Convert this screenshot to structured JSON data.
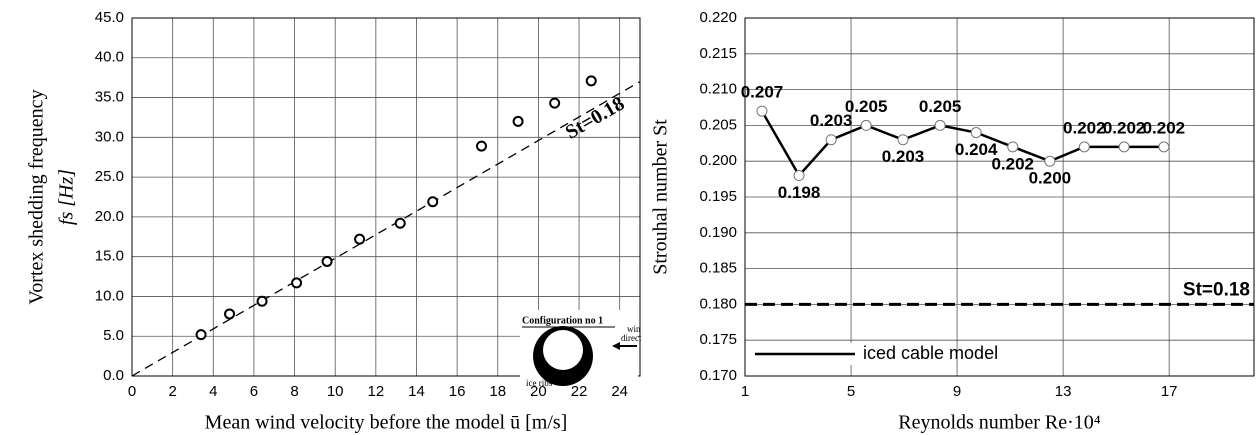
{
  "chart_data": [
    {
      "type": "scatter",
      "x_label": "Mean wind velocity before the model ū  [m/s]",
      "y_label": "Vortex shedding frequency",
      "y_label_2": "fs  [Hz]",
      "x": [
        3.4,
        4.8,
        6.4,
        8.1,
        9.6,
        11.2,
        13.2,
        14.8,
        17.2,
        19.0,
        20.8,
        22.6
      ],
      "values": [
        5.2,
        7.8,
        9.4,
        11.7,
        14.4,
        17.2,
        19.2,
        21.9,
        28.9,
        32.0,
        34.3,
        37.1
      ],
      "color": "#000000",
      "ref_line": {
        "label": "St=0.18",
        "x": [
          0,
          25
        ],
        "y": [
          0,
          37
        ]
      },
      "inset": {
        "title": "Configuration no 1",
        "wind": [
          "win",
          "direct"
        ],
        "ribs": "ice ribs"
      },
      "xlim": [
        0,
        25
      ],
      "xticks": [
        0,
        2,
        4,
        6,
        8,
        10,
        12,
        14,
        16,
        18,
        20,
        22,
        24
      ],
      "ylim": [
        0,
        45
      ],
      "yticks": [
        {
          "value": 0,
          "label": "0.0"
        },
        {
          "value": 5,
          "label": "5.0"
        },
        {
          "value": 10,
          "label": "10.0"
        },
        {
          "value": 15,
          "label": "15.0"
        },
        {
          "value": 20,
          "label": "20.0"
        },
        {
          "value": 25,
          "label": "25.0"
        },
        {
          "value": 30,
          "label": "30.0"
        },
        {
          "value": 35,
          "label": "35.0"
        },
        {
          "value": 40,
          "label": "40.0"
        },
        {
          "value": 45,
          "label": "45.0"
        }
      ],
      "grid": true
    },
    {
      "type": "line",
      "x_label": "Reynolds number Re·10⁴",
      "y_label": "Strouhal number St",
      "x": [
        1.64,
        3.04,
        4.25,
        5.57,
        6.96,
        8.36,
        9.72,
        11.1,
        12.5,
        13.8,
        15.3,
        16.8
      ],
      "series": [
        {
          "name": "iced cable model",
          "color": "#000000",
          "values": [
            0.207,
            0.198,
            0.203,
            0.205,
            0.203,
            0.205,
            0.204,
            0.202,
            0.2,
            0.202,
            0.202,
            0.202
          ],
          "value_labels": [
            "0.207",
            "0.198",
            "0.203",
            "0.205",
            "0.203",
            "0.205",
            "0.204",
            "0.202",
            "0.200",
            "0.202",
            "0.202",
            "0.202"
          ]
        }
      ],
      "ref_line": {
        "label": "St=0.18",
        "y": 0.18
      },
      "legend": "lower left",
      "xlim": [
        1,
        20.2
      ],
      "xticks": [
        1,
        5,
        9,
        13,
        17
      ],
      "ylim": [
        0.17,
        0.22
      ],
      "yticks": [
        {
          "value": 0.17,
          "label": "0.170"
        },
        {
          "value": 0.175,
          "label": "0.175"
        },
        {
          "value": 0.18,
          "label": "0.180"
        },
        {
          "value": 0.185,
          "label": "0.185"
        },
        {
          "value": 0.19,
          "label": "0.190"
        },
        {
          "value": 0.195,
          "label": "0.195"
        },
        {
          "value": 0.2,
          "label": "0.200"
        },
        {
          "value": 0.205,
          "label": "0.205"
        },
        {
          "value": 0.21,
          "label": "0.210"
        },
        {
          "value": 0.215,
          "label": "0.215"
        },
        {
          "value": 0.22,
          "label": "0.220"
        }
      ],
      "grid": true
    }
  ]
}
